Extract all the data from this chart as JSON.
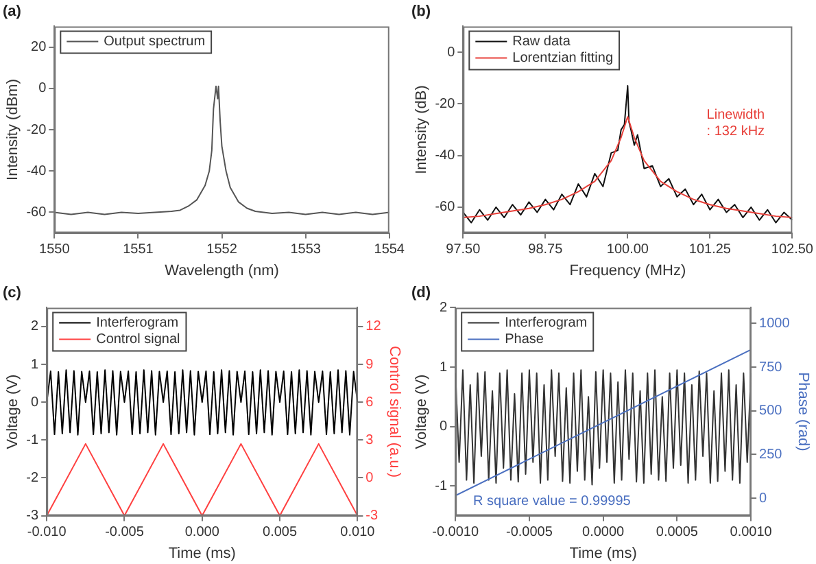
{
  "chart_data": [
    {
      "type": "line",
      "title": "(a)",
      "xlabel": "Wavelength (nm)",
      "ylabel": "Intensity (dBm)",
      "x": [
        1550,
        1550.2,
        1550.4,
        1550.6,
        1550.8,
        1551,
        1551.2,
        1551.4,
        1551.5,
        1551.6,
        1551.7,
        1551.8,
        1551.85,
        1551.88,
        1551.9,
        1551.93,
        1551.95,
        1551.96,
        1551.98,
        1552,
        1552.05,
        1552.1,
        1552.2,
        1552.3,
        1552.4,
        1552.6,
        1552.8,
        1553,
        1553.2,
        1553.4,
        1553.6,
        1553.8,
        1554
      ],
      "series": [
        {
          "name": "Output spectrum",
          "color": "#555555",
          "values": [
            -60,
            -61,
            -60,
            -61,
            -60,
            -60.5,
            -60,
            -59.5,
            -59,
            -57,
            -54,
            -47,
            -40,
            -30,
            -10,
            1,
            -5,
            1,
            -16,
            -28,
            -40,
            -48,
            -55,
            -58,
            -59.5,
            -60.5,
            -60,
            -61,
            -60,
            -61,
            -60,
            -61,
            -60
          ]
        }
      ],
      "xlim": [
        1550,
        1554
      ],
      "xticks": [
        1550,
        1551,
        1552,
        1553,
        1554
      ],
      "ylim": [
        -70,
        30
      ],
      "yticks": [
        -60,
        -40,
        -20,
        0,
        20
      ],
      "grid": false,
      "legend": "top left"
    },
    {
      "type": "line",
      "title": "(b)",
      "xlabel": "Frequency (MHz)",
      "ylabel": "Intensity (dB)",
      "series": [
        {
          "name": "Raw data",
          "color": "#111111",
          "x": [
            97.5,
            97.625,
            97.75,
            97.875,
            98,
            98.125,
            98.25,
            98.375,
            98.5,
            98.625,
            98.75,
            98.875,
            99,
            99.125,
            99.25,
            99.375,
            99.5,
            99.625,
            99.75,
            99.85,
            99.9,
            99.95,
            100,
            100.02,
            100.05,
            100.1,
            100.15,
            100.25,
            100.375,
            100.5,
            100.625,
            100.75,
            100.875,
            101,
            101.125,
            101.25,
            101.375,
            101.5,
            101.625,
            101.75,
            101.875,
            102,
            102.125,
            102.25,
            102.375,
            102.5
          ],
          "values": [
            -62,
            -66,
            -61,
            -65,
            -60,
            -64,
            -59,
            -63,
            -58,
            -62,
            -57,
            -61,
            -55,
            -59,
            -51,
            -56,
            -47,
            -52,
            -39,
            -38,
            -30,
            -28,
            -13,
            -27,
            -30,
            -36,
            -32,
            -45,
            -44,
            -52,
            -49,
            -56,
            -53,
            -59,
            -55,
            -61,
            -57,
            -62,
            -59,
            -64,
            -60,
            -65,
            -61,
            -66,
            -62,
            -65
          ]
        },
        {
          "name": "Lorentzian fitting",
          "color": "#e8403a",
          "x": [
            97.5,
            97.75,
            98,
            98.25,
            98.5,
            98.75,
            99,
            99.25,
            99.5,
            99.75,
            99.9,
            100,
            100.1,
            100.25,
            100.5,
            100.75,
            101,
            101.25,
            101.5,
            101.75,
            102,
            102.25,
            102.5
          ],
          "values": [
            -64,
            -63.5,
            -62.5,
            -61.5,
            -60.5,
            -59,
            -57,
            -54,
            -50,
            -42,
            -33,
            -25,
            -33,
            -42,
            -50,
            -54,
            -57,
            -59,
            -60.5,
            -61.5,
            -62.5,
            -63.5,
            -64
          ]
        }
      ],
      "annotations": [
        "Linewidth",
        ": 132 kHz"
      ],
      "xlim": [
        97.5,
        102.5
      ],
      "xticks": [
        {
          "value": 97.5,
          "label": "97.50"
        },
        {
          "value": 98.75,
          "label": "98.75"
        },
        {
          "value": 100,
          "label": "100.00"
        },
        {
          "value": 101.25,
          "label": "101.25"
        },
        {
          "value": 102.5,
          "label": "102.50"
        }
      ],
      "ylim": [
        -70,
        10
      ],
      "yticks": [
        -60,
        -40,
        -20,
        0
      ],
      "grid": false,
      "legend": "top left"
    },
    {
      "type": "line",
      "title": "(c)",
      "xlabel": "Time (ms)",
      "ylabel": "Voltage (V)",
      "y2label": "Control signal (a.u.)",
      "series": [
        {
          "name": "Interferogram",
          "color": "#000000",
          "x": [
            -0.01,
            -0.00975,
            -0.0095,
            -0.00925,
            -0.009,
            -0.00875,
            -0.0085,
            -0.00825,
            -0.008,
            -0.00775,
            -0.0075,
            -0.00725,
            -0.007,
            -0.00675,
            -0.0065,
            -0.00625,
            -0.006,
            -0.00575,
            -0.0055,
            -0.00525,
            -0.005,
            -0.00475,
            -0.0045,
            -0.00425,
            -0.004,
            -0.00375,
            -0.0035,
            -0.00325,
            -0.003,
            -0.00275,
            -0.0025,
            -0.00225,
            -0.002,
            -0.00175,
            -0.0015,
            -0.00125,
            -0.001,
            -0.00075,
            -0.0005,
            -0.00025,
            0,
            0.00025,
            0.0005,
            0.00075,
            0.001,
            0.00125,
            0.0015,
            0.00175,
            0.002,
            0.00225,
            0.0025,
            0.00275,
            0.003,
            0.00325,
            0.0035,
            0.00375,
            0.004,
            0.00425,
            0.0045,
            0.00475,
            0.005,
            0.00525,
            0.0055,
            0.00575,
            0.006,
            0.00625,
            0.0065,
            0.00675,
            0.007,
            0.00725,
            0.0075,
            0.00775,
            0.008,
            0.00825,
            0.0085,
            0.00875,
            0.009,
            0.00925,
            0.0095,
            0.00975,
            0.01
          ],
          "values": [
            0,
            0.82,
            -0.85,
            0.8,
            -0.83,
            0.85,
            -0.8,
            0.83,
            -0.86,
            0.81,
            0,
            0.82,
            -0.85,
            0.8,
            -0.83,
            0.85,
            -0.8,
            0.83,
            -0.86,
            0.81,
            0,
            0.82,
            -0.85,
            0.8,
            -0.83,
            0.85,
            -0.8,
            0.83,
            -0.86,
            0.81,
            0,
            0.82,
            -0.85,
            0.8,
            -0.83,
            0.85,
            -0.8,
            0.83,
            -0.86,
            0.81,
            0,
            0.82,
            -0.85,
            0.8,
            -0.83,
            0.85,
            -0.8,
            0.83,
            -0.86,
            0.81,
            0,
            0.82,
            -0.85,
            0.8,
            -0.83,
            0.85,
            -0.8,
            0.83,
            -0.86,
            0.81,
            0,
            0.82,
            -0.85,
            0.8,
            -0.83,
            0.85,
            -0.8,
            0.83,
            -0.86,
            0.81,
            0,
            0.82,
            -0.85,
            0.8,
            -0.83,
            0.85,
            -0.8,
            0.83,
            -0.86,
            0.81,
            0
          ]
        },
        {
          "name": "Control signal",
          "color": "#ff4040",
          "axis": "y2",
          "x": [
            -0.01,
            -0.0075,
            -0.005,
            -0.0025,
            0,
            0.0025,
            0.005,
            0.0075,
            0.01
          ],
          "values": [
            -3,
            2.7,
            -3,
            2.7,
            -3,
            2.7,
            -3,
            2.7,
            -3
          ]
        }
      ],
      "xlim": [
        -0.01,
        0.01
      ],
      "xticks": [
        {
          "value": -0.01,
          "label": "-0.010"
        },
        {
          "value": -0.005,
          "label": "-0.005"
        },
        {
          "value": 0,
          "label": "0.000"
        },
        {
          "value": 0.005,
          "label": "0.005"
        },
        {
          "value": 0.01,
          "label": "0.010"
        }
      ],
      "ylim": [
        -3,
        2.5
      ],
      "yticks": [
        -3,
        -2,
        -1,
        0,
        1,
        2
      ],
      "y2lim": [
        -3,
        13.5
      ],
      "y2ticks": [
        -3,
        0,
        3,
        6,
        9,
        12
      ],
      "grid": false,
      "legend": "top left"
    },
    {
      "type": "line",
      "title": "(d)",
      "xlabel": "Time (ms)",
      "ylabel": "Voltage (V)",
      "y2label": "Phase (rad)",
      "series": [
        {
          "name": "Interferogram",
          "color": "#333333",
          "x": [
            -0.001,
            -0.000975,
            -0.00095,
            -0.000925,
            -0.0009,
            -0.000875,
            -0.00085,
            -0.000825,
            -0.0008,
            -0.000775,
            -0.00075,
            -0.000725,
            -0.0007,
            -0.000675,
            -0.00065,
            -0.000625,
            -0.0006,
            -0.000575,
            -0.00055,
            -0.000525,
            -0.0005,
            -0.000475,
            -0.00045,
            -0.000425,
            -0.0004,
            -0.000375,
            -0.00035,
            -0.000325,
            -0.0003,
            -0.000275,
            -0.00025,
            -0.000225,
            -0.0002,
            -0.000175,
            -0.00015,
            -0.000125,
            -0.0001,
            -7.5e-05,
            -5e-05,
            -2.5e-05,
            0,
            2.5e-05,
            5e-05,
            7.5e-05,
            0.0001,
            0.000125,
            0.00015,
            0.000175,
            0.0002,
            0.000225,
            0.00025,
            0.000275,
            0.0003,
            0.000325,
            0.00035,
            0.000375,
            0.0004,
            0.000425,
            0.00045,
            0.000475,
            0.0005,
            0.000525,
            0.00055,
            0.000575,
            0.0006,
            0.000625,
            0.00065,
            0.000675,
            0.0007,
            0.000725,
            0.00075,
            0.000775,
            0.0008,
            0.000825,
            0.00085,
            0.000875,
            0.0009,
            0.000925,
            0.00095,
            0.000975,
            0.001
          ],
          "values": [
            0.9,
            -0.6,
            0.95,
            -0.9,
            0.7,
            -0.95,
            0.9,
            -0.5,
            0.92,
            -0.9,
            0.6,
            -0.95,
            0.9,
            -0.7,
            0.95,
            -0.9,
            0.55,
            -0.93,
            0.9,
            -0.8,
            0.95,
            -0.6,
            0.9,
            -0.95,
            0.7,
            -0.9,
            0.95,
            -0.5,
            0.9,
            -0.92,
            0.65,
            -0.95,
            0.9,
            -0.75,
            0.95,
            -0.9,
            0.5,
            -0.98,
            0.92,
            -0.7,
            0.95,
            -0.6,
            0.9,
            -0.95,
            0.75,
            -0.9,
            0.95,
            -0.55,
            0.9,
            -0.93,
            0.6,
            -0.95,
            0.9,
            -0.8,
            0.95,
            -0.9,
            0.5,
            -0.92,
            0.9,
            -0.7,
            0.95,
            -0.65,
            0.9,
            -0.95,
            0.7,
            -0.9,
            0.93,
            -0.5,
            0.9,
            -0.95,
            0.6,
            -0.92,
            0.9,
            -0.75,
            0.95,
            -0.9,
            0.7,
            -0.95,
            0.9,
            -0.6,
            0.9
          ]
        },
        {
          "name": "Phase",
          "color": "#4a6fc0",
          "axis": "y2",
          "x": [
            -0.001,
            0.001
          ],
          "values": [
            15,
            850
          ]
        }
      ],
      "annotations": [
        "R square value = 0.99995"
      ],
      "xlim": [
        -0.001,
        0.001
      ],
      "xticks": [
        {
          "value": -0.001,
          "label": "-0.0010"
        },
        {
          "value": -0.0005,
          "label": "-0.0005"
        },
        {
          "value": 0,
          "label": "0.0000"
        },
        {
          "value": 0.0005,
          "label": "0.0005"
        },
        {
          "value": 0.001,
          "label": "0.0010"
        }
      ],
      "ylim": [
        -1.5,
        2
      ],
      "yticks": [
        -1,
        0,
        1,
        2
      ],
      "y2lim": [
        -100,
        1090
      ],
      "y2ticks": [
        0,
        250,
        500,
        750,
        1000
      ],
      "grid": false,
      "legend": "top left"
    }
  ]
}
